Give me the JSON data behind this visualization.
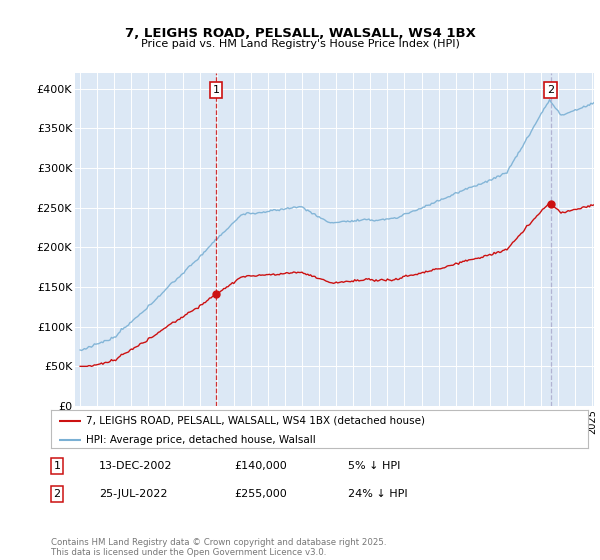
{
  "title": "7, LEIGHS ROAD, PELSALL, WALSALL, WS4 1BX",
  "subtitle": "Price paid vs. HM Land Registry's House Price Index (HPI)",
  "ylim": [
    0,
    420000
  ],
  "yticks": [
    0,
    50000,
    100000,
    150000,
    200000,
    250000,
    300000,
    350000,
    400000
  ],
  "ytick_labels": [
    "£0",
    "£50K",
    "£100K",
    "£150K",
    "£200K",
    "£250K",
    "£300K",
    "£350K",
    "£400K"
  ],
  "background_color": "#dce8f5",
  "hpi_color": "#7ab0d4",
  "price_color": "#cc1111",
  "transaction1_date": "13-DEC-2002",
  "transaction1_price": 140000,
  "transaction1_label": "1",
  "transaction1_note": "5% ↓ HPI",
  "transaction2_date": "25-JUL-2022",
  "transaction2_price": 255000,
  "transaction2_label": "2",
  "transaction2_note": "24% ↓ HPI",
  "legend_line1": "7, LEIGHS ROAD, PELSALL, WALSALL, WS4 1BX (detached house)",
  "legend_line2": "HPI: Average price, detached house, Walsall",
  "footer": "Contains HM Land Registry data © Crown copyright and database right 2025.\nThis data is licensed under the Open Government Licence v3.0.",
  "start_year": 1995,
  "end_year": 2025,
  "transaction1_x": 2002.95,
  "transaction2_x": 2022.57
}
